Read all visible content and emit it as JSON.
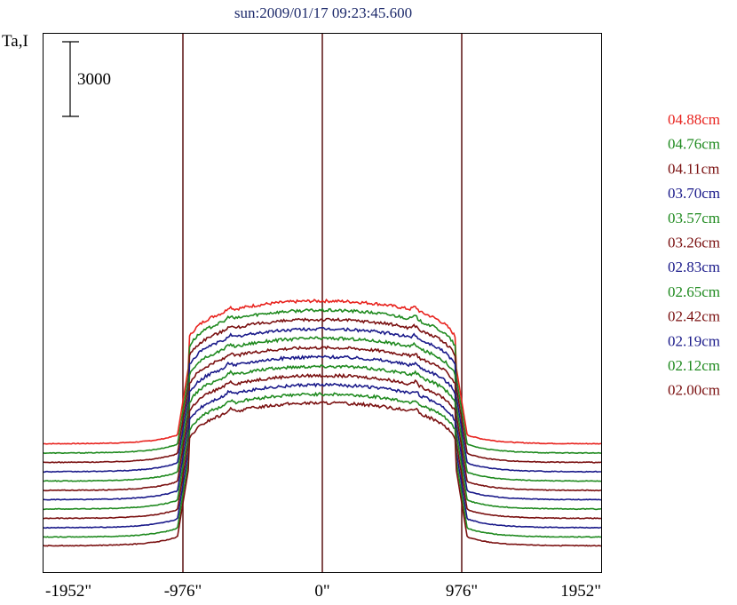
{
  "chart_data": {
    "type": "line",
    "title": "sun:2009/01/17 09:23:45.600",
    "ylabel": "Ta,I",
    "scale_bar_label": "3000",
    "x_ticks": [
      "-1952\"",
      "-976\"",
      "0\"",
      "976\"",
      "1952\""
    ],
    "x_tick_values": [
      -1952,
      -976,
      0,
      976,
      1952
    ],
    "xlim": [
      -1952,
      1952
    ],
    "vlines": [
      -976,
      0,
      976
    ],
    "grid": false,
    "legend_position": "right",
    "series": [
      {
        "name": "04.88cm",
        "color": "#e8231e",
        "baseline": 4100,
        "disk": 5800
      },
      {
        "name": "04.76cm",
        "color": "#1f8a1f",
        "baseline": 3725,
        "disk": 5800
      },
      {
        "name": "04.11cm",
        "color": "#7a1010",
        "baseline": 3350,
        "disk": 5800
      },
      {
        "name": "03.70cm",
        "color": "#1a1a8a",
        "baseline": 2975,
        "disk": 5800
      },
      {
        "name": "03.57cm",
        "color": "#1f8a1f",
        "baseline": 2600,
        "disk": 5800
      },
      {
        "name": "03.26cm",
        "color": "#7a1010",
        "baseline": 2225,
        "disk": 5800
      },
      {
        "name": "02.83cm",
        "color": "#1a1a8a",
        "baseline": 1850,
        "disk": 5800
      },
      {
        "name": "02.65cm",
        "color": "#1f8a1f",
        "baseline": 1475,
        "disk": 5800
      },
      {
        "name": "02.42cm",
        "color": "#7a1010",
        "baseline": 1100,
        "disk": 5800
      },
      {
        "name": "02.19cm",
        "color": "#1a1a8a",
        "baseline": 725,
        "disk": 5800
      },
      {
        "name": "02.12cm",
        "color": "#1f8a1f",
        "baseline": 350,
        "disk": 5800
      },
      {
        "name": "02.00cm",
        "color": "#7a1010",
        "baseline": 0,
        "disk": 5800
      }
    ]
  }
}
